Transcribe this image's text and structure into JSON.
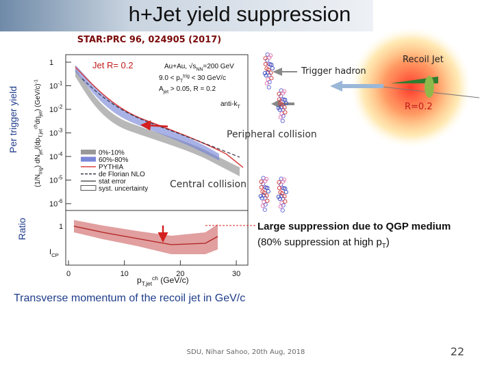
{
  "header": {
    "title": "h+Jet yield suppression",
    "reference": "STAR:PRC 96, 024905 (2017)"
  },
  "side_labels": {
    "top": "Per trigger yield",
    "bottom": "Ratio"
  },
  "figure": {
    "panel_label": "Jet R= 0.2",
    "info": {
      "system": [
        "Au+Au, ",
        "√s",
        "NN",
        "=200 GeV"
      ],
      "trigger": [
        "9.0 < p",
        "T",
        "trig",
        " < 30 GeV/c"
      ],
      "area": [
        "A",
        "jet",
        " > 0.05, R = 0.2"
      ],
      "algorithm": [
        "anti-k",
        "T"
      ]
    },
    "legend": [
      "0%-10%",
      "60%-80%",
      "PYTHIA",
      "de Florian NLO",
      "stat error",
      "syst. uncertainty"
    ],
    "yticks": [
      {
        "base": "1",
        "exp": ""
      },
      {
        "base": "10",
        "exp": "-1"
      },
      {
        "base": "10",
        "exp": "-2"
      },
      {
        "base": "10",
        "exp": "-3"
      },
      {
        "base": "10",
        "exp": "-4"
      },
      {
        "base": "10",
        "exp": "-5"
      },
      {
        "base": "10",
        "exp": "-6"
      }
    ],
    "y_label": [
      "(1/N",
      "trig",
      ") dN",
      "jet",
      "/(dp",
      "T,jet",
      "ch",
      "dη",
      "jet",
      ") (GeV/c)",
      "-1"
    ],
    "ratio_tick": "1",
    "ratio_label": [
      "I",
      "CP"
    ],
    "xticks": [
      "0",
      "10",
      "20",
      "30"
    ],
    "x_label": [
      "p",
      "T,jet",
      "ch",
      " (GeV/c)"
    ]
  },
  "annotations": {
    "trigger_hadron": "Trigger hadron",
    "recoil_jet": "Recoil Jet",
    "radius": "R=0.2",
    "peripheral": "Peripheral collision",
    "central": "Central collision",
    "suppression": "Large suppression due to QGP medium",
    "suppression_note": [
      "(80% suppression at high p",
      "T",
      ")"
    ],
    "x_caption": "Transverse momentum of the recoil jet in GeV/c"
  },
  "footer": {
    "credit": "SDU, Nihar Sahoo, 20th Aug, 2018",
    "page": "22"
  }
}
